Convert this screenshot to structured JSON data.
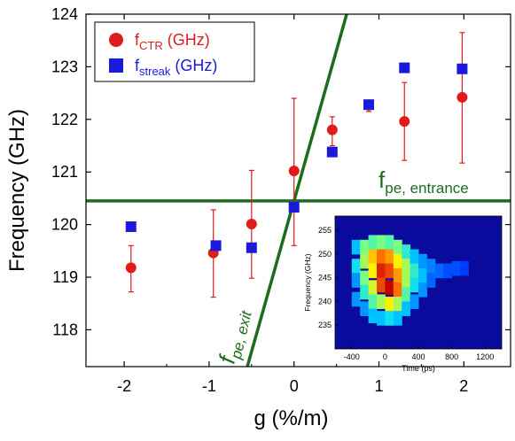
{
  "chart_data": {
    "type": "scatter",
    "xlabel": "g (%/m)",
    "ylabel": "Frequency (GHz)",
    "xlim": [
      -2.45,
      2.55
    ],
    "ylim": [
      117.3,
      124.0
    ],
    "xticks": [
      "-2",
      "-1",
      "0",
      "1",
      "2"
    ],
    "yticks": [
      "118",
      "119",
      "120",
      "121",
      "122",
      "123",
      "124"
    ],
    "legend_position": "top-left",
    "series": [
      {
        "name_main": "f",
        "name_sub": "CTR",
        "name_unit": " (GHz)",
        "color": "#e01b1b",
        "marker": "circle",
        "points": [
          {
            "x": -1.92,
            "y": 119.18,
            "lo": 118.72,
            "hi": 119.6
          },
          {
            "x": -0.95,
            "y": 119.46,
            "lo": 118.62,
            "hi": 120.28
          },
          {
            "x": -0.5,
            "y": 120.01,
            "lo": 118.98,
            "hi": 121.03
          },
          {
            "x": 0.0,
            "y": 121.02,
            "lo": 119.6,
            "hi": 122.4
          },
          {
            "x": 0.45,
            "y": 121.8,
            "lo": 121.5,
            "hi": 122.05
          },
          {
            "x": 0.88,
            "y": 122.27,
            "lo": 122.15,
            "hi": 122.35
          },
          {
            "x": 1.3,
            "y": 121.96,
            "lo": 121.22,
            "hi": 122.7
          },
          {
            "x": 1.98,
            "y": 122.42,
            "lo": 121.17,
            "hi": 123.65
          }
        ]
      },
      {
        "name_main": "f",
        "name_sub": "streak",
        "name_unit": " (GHz)",
        "color": "#1a1adc",
        "marker": "square",
        "points": [
          {
            "x": -1.92,
            "y": 119.96
          },
          {
            "x": -0.92,
            "y": 119.6
          },
          {
            "x": -0.5,
            "y": 119.56
          },
          {
            "x": 0.0,
            "y": 120.33
          },
          {
            "x": 0.45,
            "y": 121.38
          },
          {
            "x": 0.88,
            "y": 122.28
          },
          {
            "x": 1.3,
            "y": 122.98
          },
          {
            "x": 1.98,
            "y": 122.96
          }
        ]
      }
    ],
    "lines": {
      "color": "#1d6b1d",
      "entrance": {
        "label_main": "f",
        "label_sub": "pe, entrance",
        "y": 120.45
      },
      "exit": {
        "label_main": "f",
        "label_sub": "pe, exit",
        "x1": -0.55,
        "y1": 117.3,
        "x2": 0.62,
        "y2": 124.0
      }
    },
    "inset": {
      "type": "heatmap",
      "xlabel": "Time (ps)",
      "ylabel": "Frequency (GHz)",
      "xlim": [
        -600,
        1400
      ],
      "ylim": [
        230,
        258
      ],
      "xticks": [
        -400,
        0,
        400,
        800,
        1200
      ],
      "yticks": [
        235,
        240,
        245,
        250,
        255
      ],
      "background": "#0a0a9c",
      "cells": [
        {
          "t": -350,
          "f": 251.5,
          "v": 0.35
        },
        {
          "t": -350,
          "f": 247.5,
          "v": 0.4
        },
        {
          "t": -350,
          "f": 244.5,
          "v": 0.3
        },
        {
          "t": -350,
          "f": 240.5,
          "v": 0.3
        },
        {
          "t": -250,
          "f": 251.5,
          "v": 0.55
        },
        {
          "t": -250,
          "f": 248.5,
          "v": 0.6
        },
        {
          "t": -250,
          "f": 245.0,
          "v": 0.55
        },
        {
          "t": -250,
          "f": 242.0,
          "v": 0.45
        },
        {
          "t": -250,
          "f": 238.5,
          "v": 0.3
        },
        {
          "t": -150,
          "f": 252.5,
          "v": 0.5
        },
        {
          "t": -150,
          "f": 249.5,
          "v": 0.75
        },
        {
          "t": -150,
          "f": 246.5,
          "v": 0.7
        },
        {
          "t": -150,
          "f": 243.0,
          "v": 0.65
        },
        {
          "t": -150,
          "f": 240.0,
          "v": 0.5
        },
        {
          "t": -150,
          "f": 237.0,
          "v": 0.35
        },
        {
          "t": -50,
          "f": 252.5,
          "v": 0.55
        },
        {
          "t": -50,
          "f": 249.5,
          "v": 0.85
        },
        {
          "t": -50,
          "f": 246.5,
          "v": 0.95
        },
        {
          "t": -50,
          "f": 243.5,
          "v": 0.9
        },
        {
          "t": -50,
          "f": 240.0,
          "v": 0.6
        },
        {
          "t": -50,
          "f": 236.5,
          "v": 0.35
        },
        {
          "t": 50,
          "f": 252.5,
          "v": 0.5
        },
        {
          "t": 50,
          "f": 249.5,
          "v": 0.8
        },
        {
          "t": 50,
          "f": 246.5,
          "v": 0.9
        },
        {
          "t": 50,
          "f": 243.0,
          "v": 1.0
        },
        {
          "t": 50,
          "f": 239.5,
          "v": 0.7
        },
        {
          "t": 50,
          "f": 236.5,
          "v": 0.4
        },
        {
          "t": 150,
          "f": 251.5,
          "v": 0.55
        },
        {
          "t": 150,
          "f": 248.5,
          "v": 0.7
        },
        {
          "t": 150,
          "f": 245.5,
          "v": 0.8
        },
        {
          "t": 150,
          "f": 242.5,
          "v": 0.85
        },
        {
          "t": 150,
          "f": 239.5,
          "v": 0.6
        },
        {
          "t": 150,
          "f": 236.5,
          "v": 0.35
        },
        {
          "t": 250,
          "f": 250.5,
          "v": 0.45
        },
        {
          "t": 250,
          "f": 247.5,
          "v": 0.6
        },
        {
          "t": 250,
          "f": 244.5,
          "v": 0.6
        },
        {
          "t": 250,
          "f": 241.5,
          "v": 0.5
        },
        {
          "t": 250,
          "f": 238.5,
          "v": 0.35
        },
        {
          "t": 350,
          "f": 249.5,
          "v": 0.35
        },
        {
          "t": 350,
          "f": 246.5,
          "v": 0.45
        },
        {
          "t": 350,
          "f": 243.5,
          "v": 0.4
        },
        {
          "t": 350,
          "f": 240.0,
          "v": 0.3
        },
        {
          "t": 450,
          "f": 248.5,
          "v": 0.3
        },
        {
          "t": 450,
          "f": 245.5,
          "v": 0.35
        },
        {
          "t": 450,
          "f": 242.5,
          "v": 0.3
        },
        {
          "t": 550,
          "f": 247.5,
          "v": 0.28
        },
        {
          "t": 550,
          "f": 244.5,
          "v": 0.25
        },
        {
          "t": 650,
          "f": 246.5,
          "v": 0.25
        },
        {
          "t": 750,
          "f": 246.5,
          "v": 0.22
        },
        {
          "t": 850,
          "f": 247.0,
          "v": 0.22
        },
        {
          "t": 950,
          "f": 247.0,
          "v": 0.2
        }
      ]
    }
  }
}
